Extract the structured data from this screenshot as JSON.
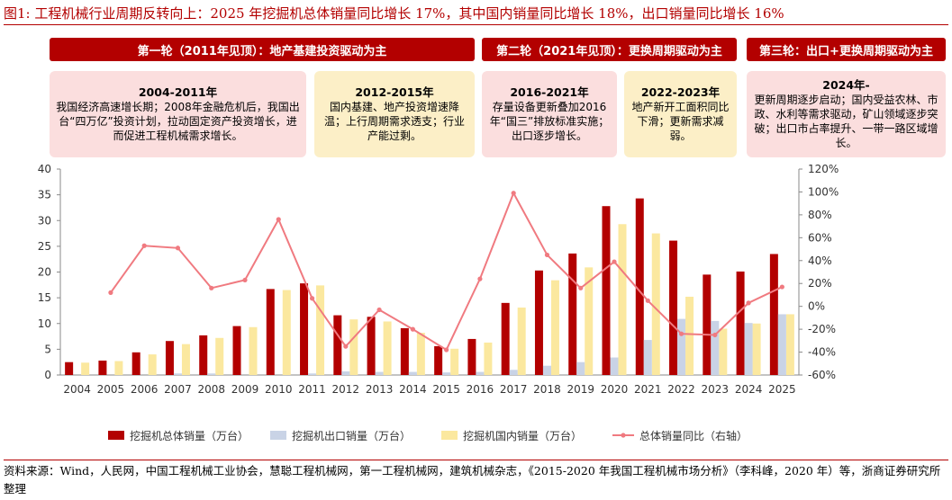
{
  "figure_title": "图1:   工程机械行业周期反转向上：2025 年挖掘机总体销量同比增长 17%，其中国内销量同比增长 18%，出口销量同比增长 16%",
  "banners": [
    "第一轮（2011年见顶）：地产基建投资驱动为主",
    "第二轮（2021年见顶）：更换周期驱动为主",
    "第三轮：出口+更换周期驱动为主"
  ],
  "boxes": [
    {
      "title": "2004-2011年",
      "text": "我国经济高速增长期；2008年金融危机后，我国出台“四万亿”投资计划，拉动固定资产投资增长，进而促进工程机械需求增长。"
    },
    {
      "title": "2012-2015年",
      "text": "国内基建、地产投资增速降温；上行周期需求透支；行业产能过剩。"
    },
    {
      "title": "2016-2021年",
      "text": "存量设备更新叠加2016年“国三”排放标准实施；出口逐步增长。"
    },
    {
      "title": "2022-2023年",
      "text": "地产新开工面积同比下滑；更新需求减弱。"
    },
    {
      "title": "2024年-",
      "text": "更新周期逐步启动；国内受益农林、市政、水利等需求驱动，矿山领域逐步突破；出口市占率提升、一带一路区域增长。"
    }
  ],
  "source_note": "资料来源：Wind，人民网，中国工程机械工业协会，慧聪工程机械网，第一工程机械网，建筑机械杂志，《2015-2020 年我国工程机械市场分析》（李科峰，2020 年）等，浙商证券研究所整理",
  "colors": {
    "total": "#b30000",
    "export": "#c9d3e6",
    "domestic": "#fbe89f",
    "yoy": "#f07a80",
    "title": "#b30000",
    "banner": "#b30000",
    "pink_box": "#fbdede",
    "yellow_box": "#fcefc7"
  },
  "chart_data": {
    "type": "bar",
    "categories": [
      "2004",
      "2005",
      "2006",
      "2007",
      "2008",
      "2009",
      "2010",
      "2011",
      "2012",
      "2013",
      "2014",
      "2015",
      "2016",
      "2017",
      "2018",
      "2019",
      "2020",
      "2021",
      "2022",
      "2023",
      "2024",
      "2025"
    ],
    "series": [
      {
        "name": "挖掘机总体销量（万台）",
        "kind": "bar",
        "axis": "left",
        "values": [
          2.5,
          2.8,
          4.4,
          6.6,
          7.7,
          9.5,
          16.7,
          17.8,
          11.6,
          11.3,
          9.1,
          5.6,
          7.0,
          14.0,
          20.3,
          23.6,
          32.8,
          34.3,
          26.1,
          19.5,
          20.1,
          23.5
        ]
      },
      {
        "name": "挖掘机出口销量（万台）",
        "kind": "bar",
        "axis": "left",
        "values": [
          0.0,
          0.0,
          0.0,
          0.3,
          0.3,
          0.0,
          0.0,
          0.3,
          0.7,
          0.6,
          0.6,
          0.5,
          0.6,
          1.0,
          1.8,
          2.5,
          3.4,
          6.8,
          10.9,
          10.5,
          10.1,
          11.8
        ]
      },
      {
        "name": "挖掘机国内销量（万台）",
        "kind": "bar",
        "axis": "left",
        "values": [
          2.4,
          2.7,
          4.0,
          6.0,
          7.2,
          9.3,
          16.5,
          17.4,
          10.8,
          10.4,
          8.2,
          5.1,
          6.3,
          13.1,
          18.4,
          20.9,
          29.3,
          27.5,
          15.2,
          9.0,
          10.0,
          11.8
        ]
      },
      {
        "name": "总体销量同比（右轴）",
        "kind": "line",
        "axis": "right",
        "unit": "%",
        "values": [
          null,
          12,
          53,
          51,
          16,
          23,
          76,
          7,
          -35,
          -3,
          -20,
          -38,
          24,
          99,
          45,
          16,
          39,
          5,
          -24,
          -25,
          3,
          17
        ]
      }
    ],
    "ylim_left": [
      0,
      40
    ],
    "yticks_left": [
      0,
      5,
      10,
      15,
      20,
      25,
      30,
      35,
      40
    ],
    "ylim_right": [
      -60,
      120
    ],
    "yticks_right": [
      "-60%",
      "-40%",
      "-20%",
      "0%",
      "20%",
      "40%",
      "60%",
      "80%",
      "100%",
      "120%"
    ],
    "grid": false,
    "legend_position": "bottom"
  }
}
